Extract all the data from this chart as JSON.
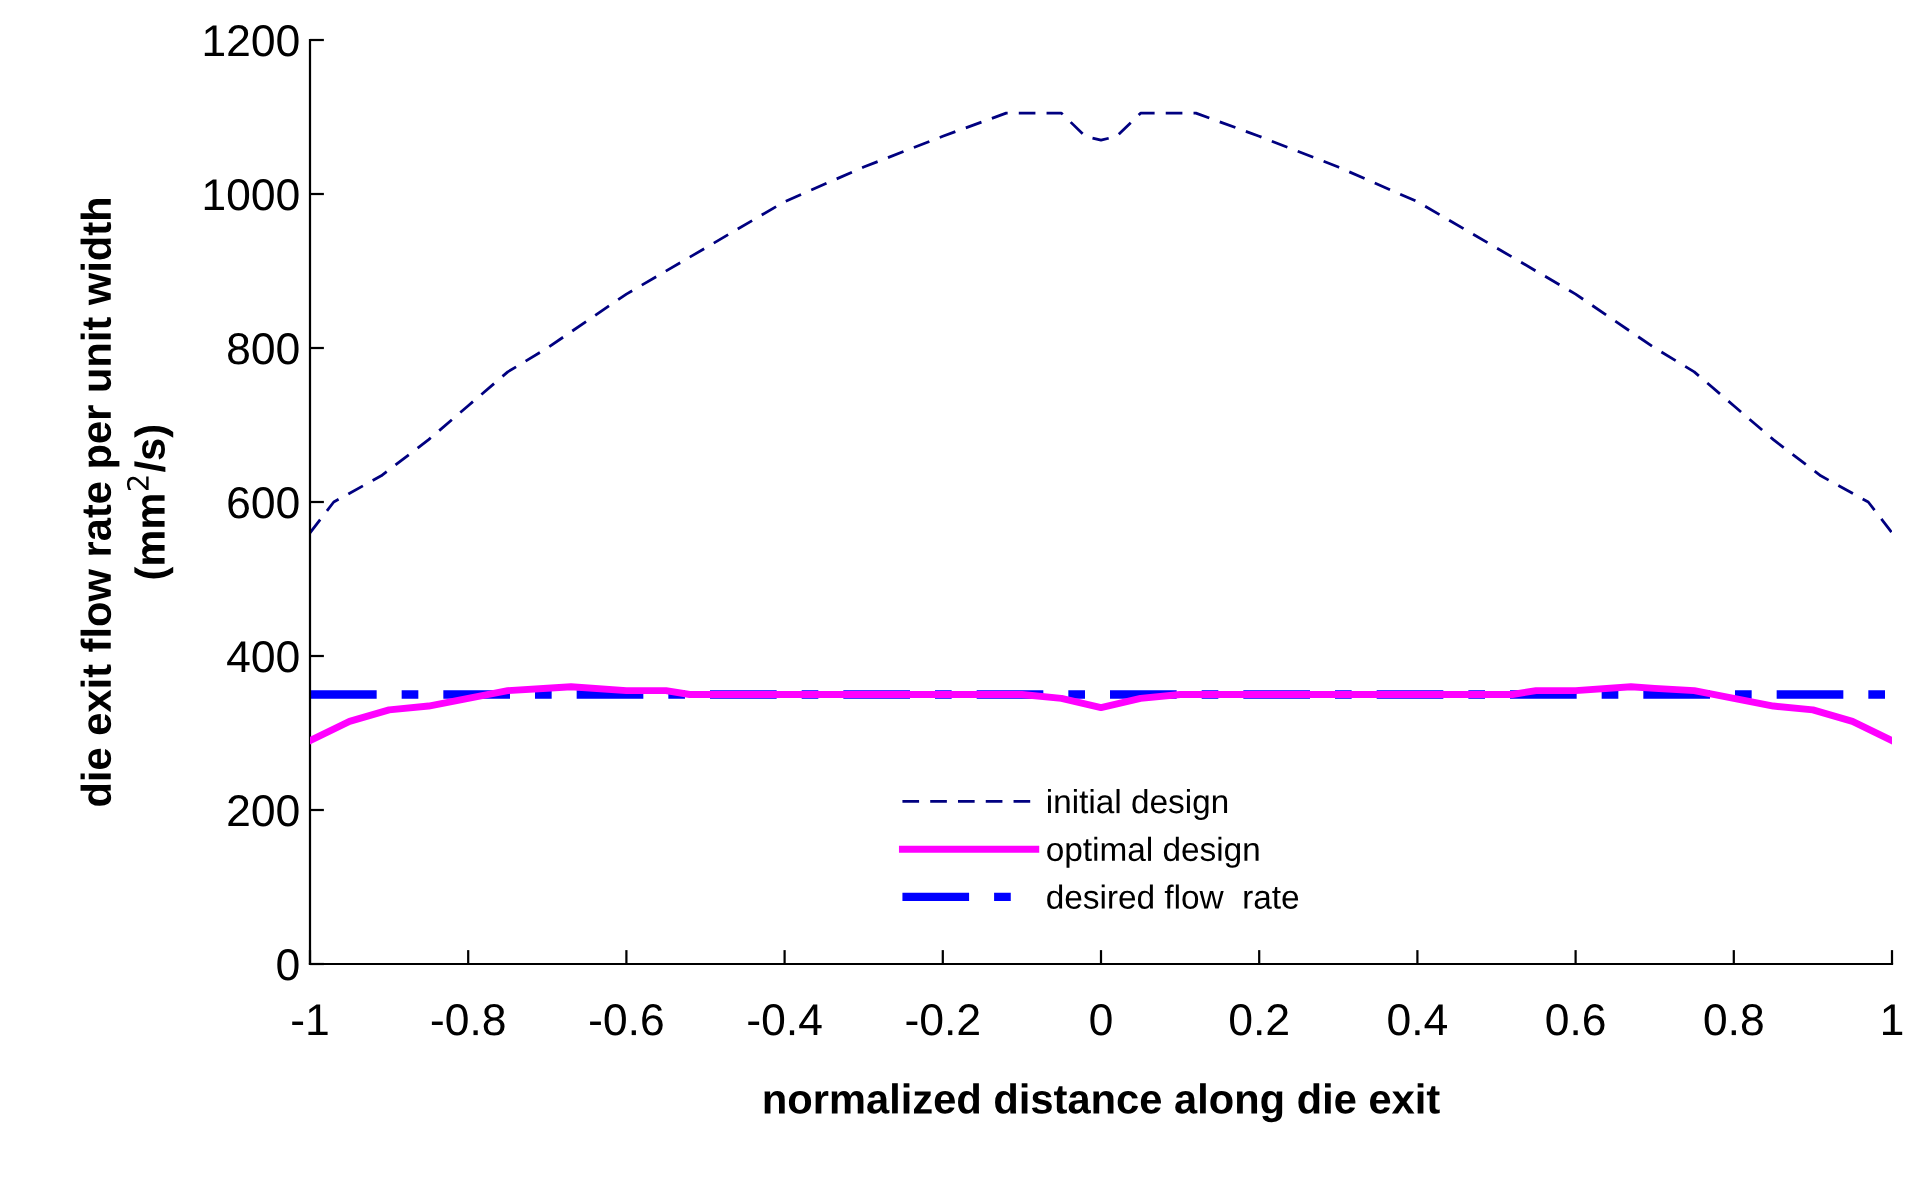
{
  "chart_data": {
    "type": "line",
    "xlabel": "normalized distance along die exit",
    "ylabel": "die exit flow rate per unit width\n(mm$^{2}$/s)",
    "xlim": [
      -1,
      1
    ],
    "xticks": [
      {
        "value": -1,
        "label": "-1"
      },
      {
        "value": -0.8,
        "label": "-0.8"
      },
      {
        "value": -0.6,
        "label": "-0.6"
      },
      {
        "value": -0.4,
        "label": "-0.4"
      },
      {
        "value": -0.2,
        "label": "-0.2"
      },
      0,
      0.2,
      0.4,
      0.6,
      0.8,
      1
    ],
    "ylim": [
      0,
      1200
    ],
    "yticks": [
      0,
      200,
      400,
      600,
      800,
      1000,
      1200
    ],
    "grid": false,
    "legend": "bottom",
    "series": [
      {
        "name": "initial design",
        "color": "#000080",
        "line_style": "dashed",
        "x": [
          -1,
          -0.97,
          -0.91,
          -0.85,
          -0.8,
          -0.75,
          -0.7,
          -0.6,
          -0.5,
          -0.4,
          -0.3,
          -0.2,
          -0.12,
          -0.05,
          -0.02,
          0,
          0.02,
          0.05,
          0.12,
          0.2,
          0.3,
          0.4,
          0.5,
          0.6,
          0.7,
          0.75,
          0.8,
          0.85,
          0.91,
          0.97,
          1
        ],
        "values": [
          560,
          600,
          634,
          681,
          725,
          769,
          800,
          870,
          930,
          990,
          1035,
          1075,
          1105,
          1105,
          1075,
          1070,
          1075,
          1105,
          1105,
          1075,
          1035,
          990,
          930,
          870,
          800,
          769,
          725,
          681,
          634,
          600,
          560
        ]
      },
      {
        "name": "optimal design",
        "color": "#ff00ff",
        "line_style": "solid",
        "x": [
          -1,
          -0.95,
          -0.9,
          -0.85,
          -0.8,
          -0.75,
          -0.7,
          -0.67,
          -0.6,
          -0.55,
          -0.52,
          -0.1,
          -0.05,
          0,
          0.05,
          0.1,
          0.52,
          0.55,
          0.6,
          0.67,
          0.7,
          0.75,
          0.8,
          0.85,
          0.9,
          0.95,
          1
        ],
        "values": [
          290,
          315,
          330,
          335,
          345,
          355,
          358,
          360,
          355,
          355,
          350,
          350,
          345,
          333,
          345,
          350,
          350,
          355,
          355,
          360,
          358,
          355,
          345,
          335,
          330,
          315,
          290
        ]
      },
      {
        "name": "desired flow  rate",
        "color": "#0000ff",
        "line_style": "dashdot",
        "x": [
          -1,
          1
        ],
        "values": [
          350,
          350
        ]
      }
    ]
  }
}
